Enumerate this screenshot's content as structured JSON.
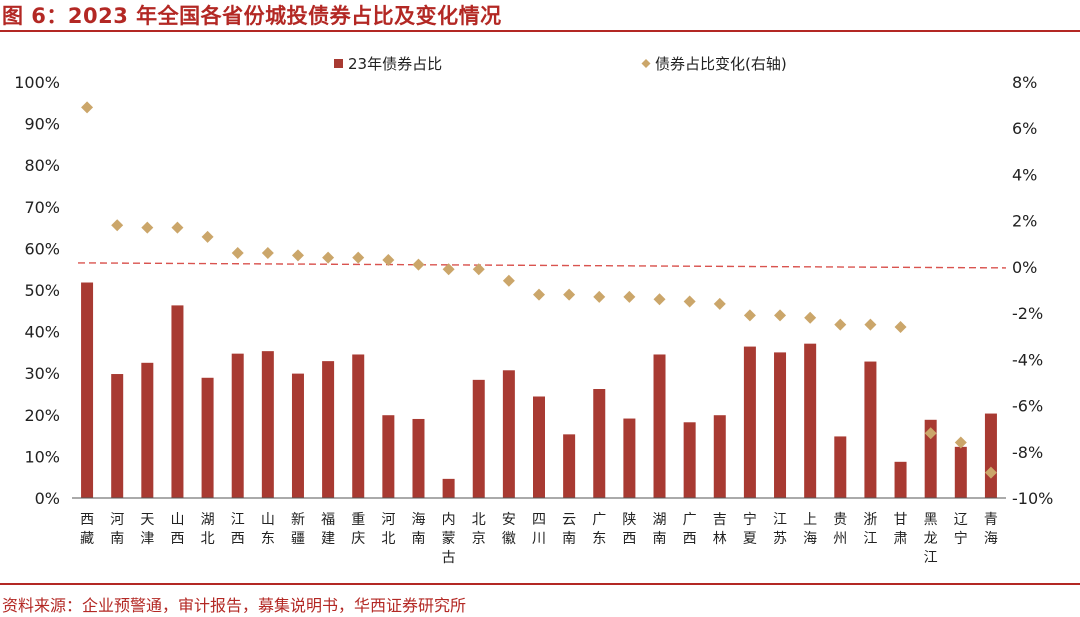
{
  "title": "图 6：2023 年全国各省份城投债券占比及变化情况",
  "source": "资料来源：企业预警通，审计报告，募集说明书，华西证券研究所",
  "colors": {
    "bar": "#a83a32",
    "marker": "#cba66a",
    "dashed": "#d9534f",
    "accent": "#b32824"
  },
  "chart_data": {
    "type": "bar",
    "categories": [
      "西藏",
      "河南",
      "天津",
      "山西",
      "湖北",
      "江西",
      "山东",
      "新疆",
      "福建",
      "重庆",
      "河北",
      "海南",
      "内蒙古",
      "北京",
      "安徽",
      "四川",
      "云南",
      "广东",
      "陕西",
      "湖南",
      "广西",
      "吉林",
      "宁夏",
      "江苏",
      "上海",
      "贵州",
      "浙江",
      "甘肃",
      "黑龙江",
      "辽宁",
      "青海"
    ],
    "series": [
      {
        "name": "23年债券占比",
        "type": "bar",
        "axis": "left",
        "values": [
          51.8,
          29.8,
          32.5,
          46.3,
          28.9,
          34.7,
          35.3,
          29.9,
          32.9,
          34.5,
          19.9,
          19.0,
          4.6,
          28.4,
          30.7,
          24.4,
          15.3,
          26.2,
          19.1,
          34.5,
          18.2,
          19.9,
          36.4,
          35.0,
          37.1,
          14.8,
          32.8,
          8.7,
          18.8,
          12.3,
          20.3
        ]
      },
      {
        "name": "债券占比变化(右轴)",
        "type": "scatter",
        "axis": "right",
        "values": [
          6.9,
          1.8,
          1.7,
          1.7,
          1.3,
          0.6,
          0.6,
          0.5,
          0.4,
          0.4,
          0.3,
          0.1,
          -0.1,
          -0.1,
          -0.6,
          -1.2,
          -1.2,
          -1.3,
          -1.3,
          -1.4,
          -1.5,
          -1.6,
          -2.1,
          -2.1,
          -2.2,
          -2.5,
          -2.5,
          -2.6,
          -7.2,
          -7.6,
          -8.9
        ]
      }
    ],
    "left_axis": {
      "min": 0,
      "max": 100,
      "step": 10,
      "tick_labels": [
        "0%",
        "10%",
        "20%",
        "30%",
        "40%",
        "50%",
        "60%",
        "70%",
        "80%",
        "90%",
        "100%"
      ]
    },
    "right_axis": {
      "min": -10,
      "max": 8,
      "step": 2,
      "tick_labels": [
        "-10%",
        "-8%",
        "-6%",
        "-4%",
        "-2%",
        "0%",
        "2%",
        "4%",
        "6%",
        "8%"
      ]
    },
    "reference_line": {
      "axis": "right",
      "value": 0,
      "style": "dashed"
    },
    "legend_position": "top-center",
    "grid": false
  }
}
